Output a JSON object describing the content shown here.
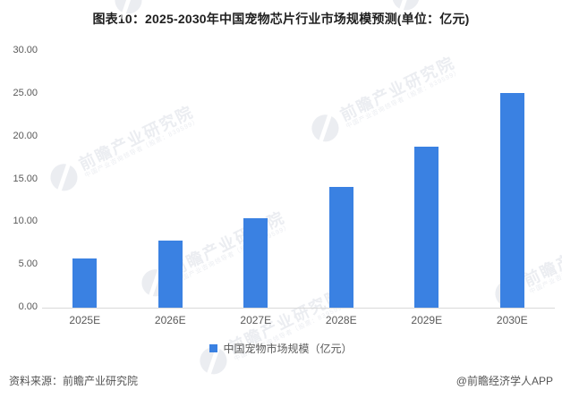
{
  "title": "图表10：2025-2030年中国宠物芯片行业市场规模预测(单位：亿元)",
  "chart_data": {
    "type": "bar",
    "title": "图表10：2025-2030年中国宠物芯片行业市场规模预测(单位：亿元)",
    "categories": [
      "2025E",
      "2026E",
      "2027E",
      "2028E",
      "2029E",
      "2030E"
    ],
    "series": [
      {
        "name": "中国宠物市场规模（亿元）",
        "values": [
          5.8,
          7.8,
          10.5,
          14.1,
          18.8,
          25.1
        ]
      }
    ],
    "xlabel": "",
    "ylabel": "",
    "ylim": [
      0,
      30
    ],
    "yticks": [
      0,
      5,
      10,
      15,
      20,
      25,
      30
    ],
    "ytick_labels": [
      "0.00",
      "5.00",
      "10.00",
      "15.00",
      "20.00",
      "25.00",
      "30.00"
    ],
    "grid": false,
    "legend_position": "bottom",
    "bar_color": "#3A81E2"
  },
  "legend": {
    "label": "中国宠物市场规模（亿元）",
    "marker_color": "#3A81E2"
  },
  "footer": {
    "source": "资料来源：前瞻产业研究院",
    "credit": "@前瞻经济学人APP"
  },
  "watermark": {
    "text": "前瞻产业研究院",
    "subtext": "中国产业咨询领导者（股票：839599）"
  },
  "colors": {
    "bar": "#3A81E2",
    "axis_line": "#d9d9d9",
    "tick_text": "#595959",
    "title_text": "#1f1f1f",
    "footer_text": "#545454",
    "watermark": "#dfe2e9"
  }
}
